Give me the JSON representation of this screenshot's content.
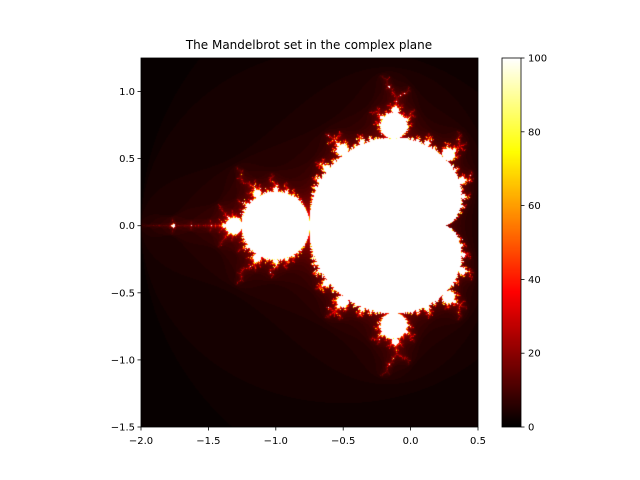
{
  "chart_data": {
    "type": "heatmap",
    "title": "The Mandelbrot set in the complex plane",
    "xlabel": "",
    "ylabel": "",
    "xlim": [
      -2.0,
      0.5
    ],
    "ylim": [
      -1.5,
      1.25
    ],
    "x_ticks": [
      -2.0,
      -1.5,
      -1.0,
      -0.5,
      0.0,
      0.5
    ],
    "x_tick_labels": [
      "−2.0",
      "−1.5",
      "−1.0",
      "−0.5",
      "0.0",
      "0.5"
    ],
    "y_ticks": [
      -1.5,
      -1.0,
      -0.5,
      0.0,
      0.5,
      1.0
    ],
    "y_tick_labels": [
      "−1.5",
      "−1.0",
      "−0.5",
      "0.0",
      "0.5",
      "1.0"
    ],
    "colormap": "hot",
    "max_iterations": 100,
    "colorbar": {
      "range": [
        0,
        100
      ],
      "ticks": [
        0,
        20,
        40,
        60,
        80,
        100
      ],
      "tick_labels": [
        "0",
        "20",
        "40",
        "60",
        "80",
        "100"
      ]
    },
    "grid": false
  }
}
